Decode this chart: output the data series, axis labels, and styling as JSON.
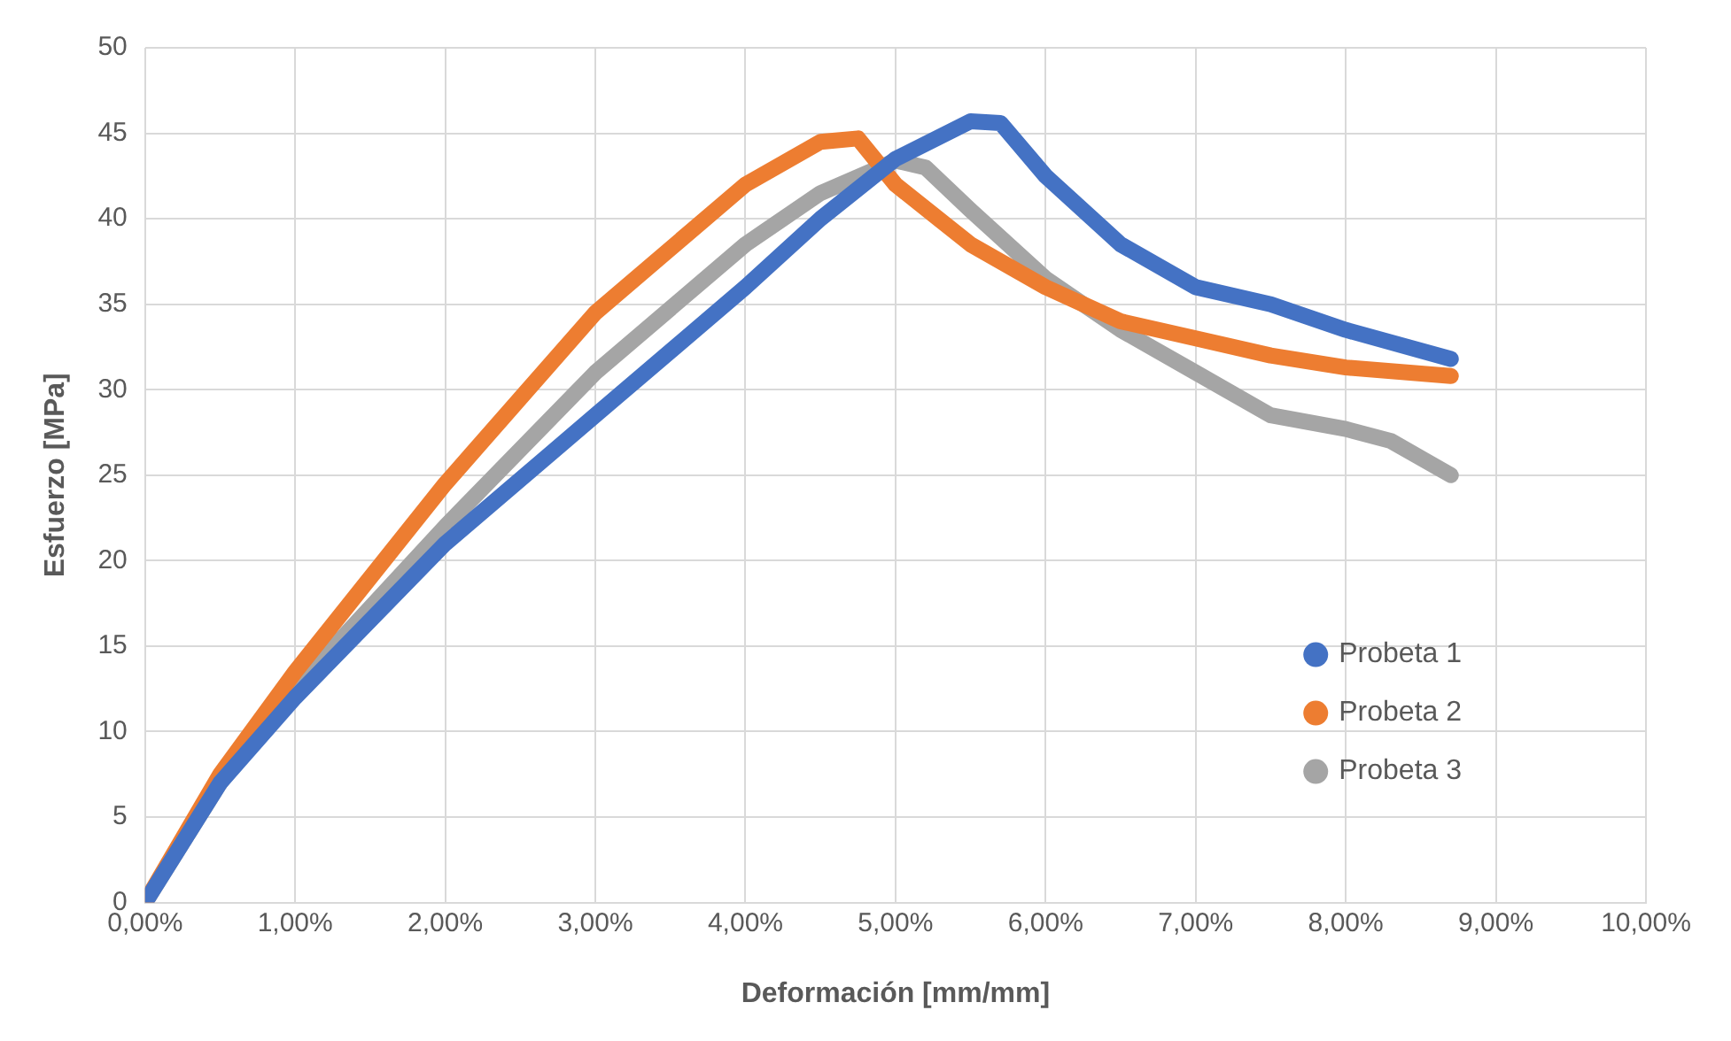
{
  "chart_data": {
    "type": "line",
    "xlabel": "Deformación [mm/mm]",
    "ylabel": "Esfuerzo [MPa]",
    "xlim": [
      0,
      10
    ],
    "xticks": [
      {
        "value": 0,
        "label": "0,00%"
      },
      {
        "value": 1,
        "label": "1,00%"
      },
      {
        "value": 2,
        "label": "2,00%"
      },
      {
        "value": 3,
        "label": "3,00%"
      },
      {
        "value": 4,
        "label": "4,00%"
      },
      {
        "value": 5,
        "label": "5,00%"
      },
      {
        "value": 6,
        "label": "6,00%"
      },
      {
        "value": 7,
        "label": "7,00%"
      },
      {
        "value": 8,
        "label": "8,00%"
      },
      {
        "value": 9,
        "label": "9,00%"
      },
      {
        "value": 10,
        "label": "10,00%"
      }
    ],
    "ylim": [
      0,
      50
    ],
    "yticks": [
      0,
      5,
      10,
      15,
      20,
      25,
      30,
      35,
      40,
      45,
      50
    ],
    "grid": true,
    "legend": "bottom right",
    "marker": "none",
    "line_style": "solid",
    "series": [
      {
        "name": "Probeta 1",
        "color": "#4472c4",
        "x": [
          0,
          0.5,
          1,
          2,
          3,
          4,
          4.5,
          5,
          5.5,
          5.7,
          6,
          6.5,
          7,
          7.5,
          8,
          8.7
        ],
        "values": [
          0,
          7,
          12,
          21,
          28.5,
          36,
          40,
          43.5,
          45.7,
          45.6,
          42.5,
          38.5,
          36,
          35,
          33.5,
          31.8
        ]
      },
      {
        "name": "Probeta 2",
        "color": "#ed7d31",
        "x": [
          0,
          0.5,
          1,
          2,
          3,
          4,
          4.5,
          4.75,
          5,
          5.5,
          6,
          6.5,
          7,
          7.5,
          8,
          8.7
        ],
        "values": [
          0,
          7.5,
          13.5,
          24.5,
          34.5,
          42,
          44.5,
          44.7,
          42,
          38.5,
          36,
          34,
          33,
          32,
          31.3,
          30.8
        ]
      },
      {
        "name": "Probeta 3",
        "color": "#a5a5a5",
        "x": [
          0,
          0.5,
          1,
          2,
          3,
          4,
          4.5,
          5,
          5.2,
          5.5,
          6,
          6.5,
          7,
          7.5,
          8,
          8.3,
          8.7
        ],
        "values": [
          0,
          7,
          12.5,
          22,
          31,
          38.5,
          41.5,
          43.4,
          43,
          40.5,
          36.5,
          33.5,
          31,
          28.5,
          27.7,
          27,
          25
        ]
      }
    ]
  }
}
